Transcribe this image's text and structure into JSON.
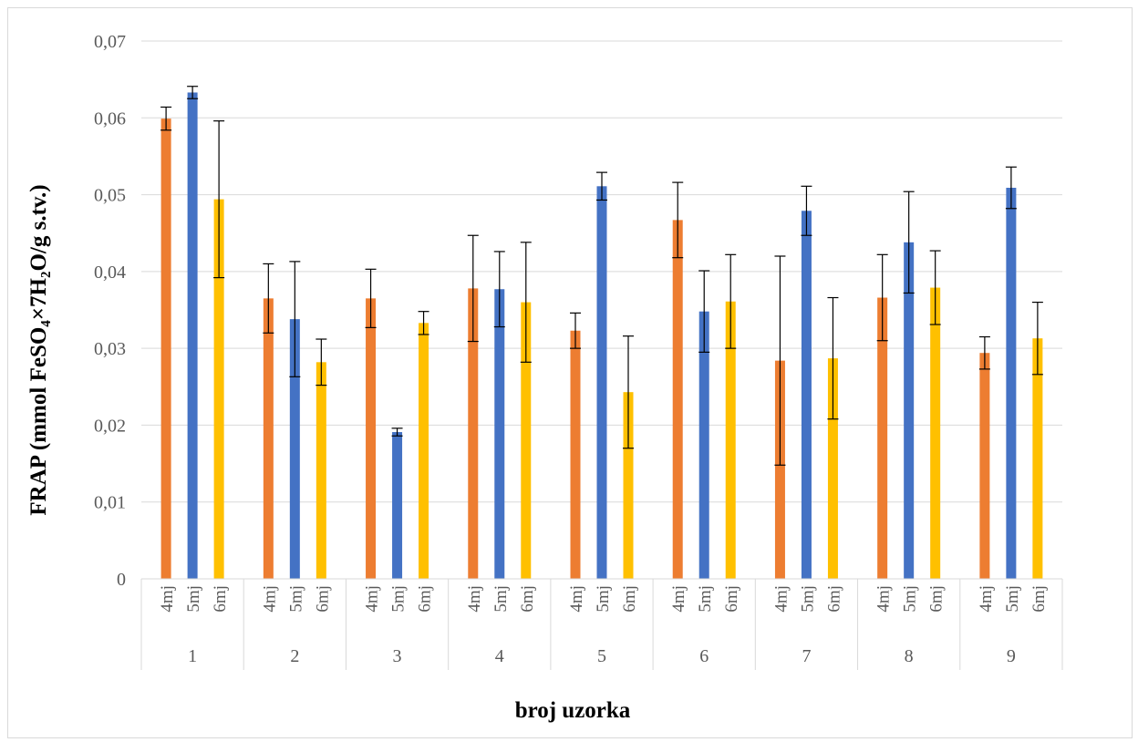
{
  "chart_data": {
    "type": "bar",
    "title": "",
    "xlabel": "broj uzorka",
    "ylabel": "FRAP (mmol FeSO₄×7H₂O/g s.tv.)",
    "ylim": [
      0,
      0.07
    ],
    "y_ticks": [
      "0",
      "0,01",
      "0,02",
      "0,03",
      "0,04",
      "0,05",
      "0,06",
      "0,07"
    ],
    "grid": true,
    "legend": "none",
    "groups": [
      "1",
      "2",
      "3",
      "4",
      "5",
      "6",
      "7",
      "8",
      "9"
    ],
    "subcategories": [
      "4mj",
      "5mj",
      "6mj"
    ],
    "series": [
      {
        "color": "#ED7D31",
        "values": [
          0.0599,
          0.0365,
          0.0365,
          0.0378,
          0.0323,
          0.0467,
          0.0284,
          0.0366,
          0.0294
        ],
        "errors": [
          0.0015,
          0.0045,
          0.0038,
          0.0069,
          0.0023,
          0.0049,
          0.0136,
          0.0056,
          0.0021
        ]
      },
      {
        "color": "#4472C4",
        "values": [
          0.0633,
          0.0338,
          0.0191,
          0.0377,
          0.0511,
          0.0348,
          0.0479,
          0.0438,
          0.0509
        ],
        "errors": [
          0.0008,
          0.0075,
          0.0005,
          0.0049,
          0.0018,
          0.0053,
          0.0032,
          0.0066,
          0.0027
        ]
      },
      {
        "color": "#FFC000",
        "values": [
          0.0494,
          0.0282,
          0.0333,
          0.036,
          0.0243,
          0.0361,
          0.0287,
          0.0379,
          0.0313
        ],
        "errors": [
          0.0102,
          0.003,
          0.0015,
          0.0078,
          0.0073,
          0.0061,
          0.0079,
          0.0048,
          0.0047
        ]
      }
    ]
  }
}
